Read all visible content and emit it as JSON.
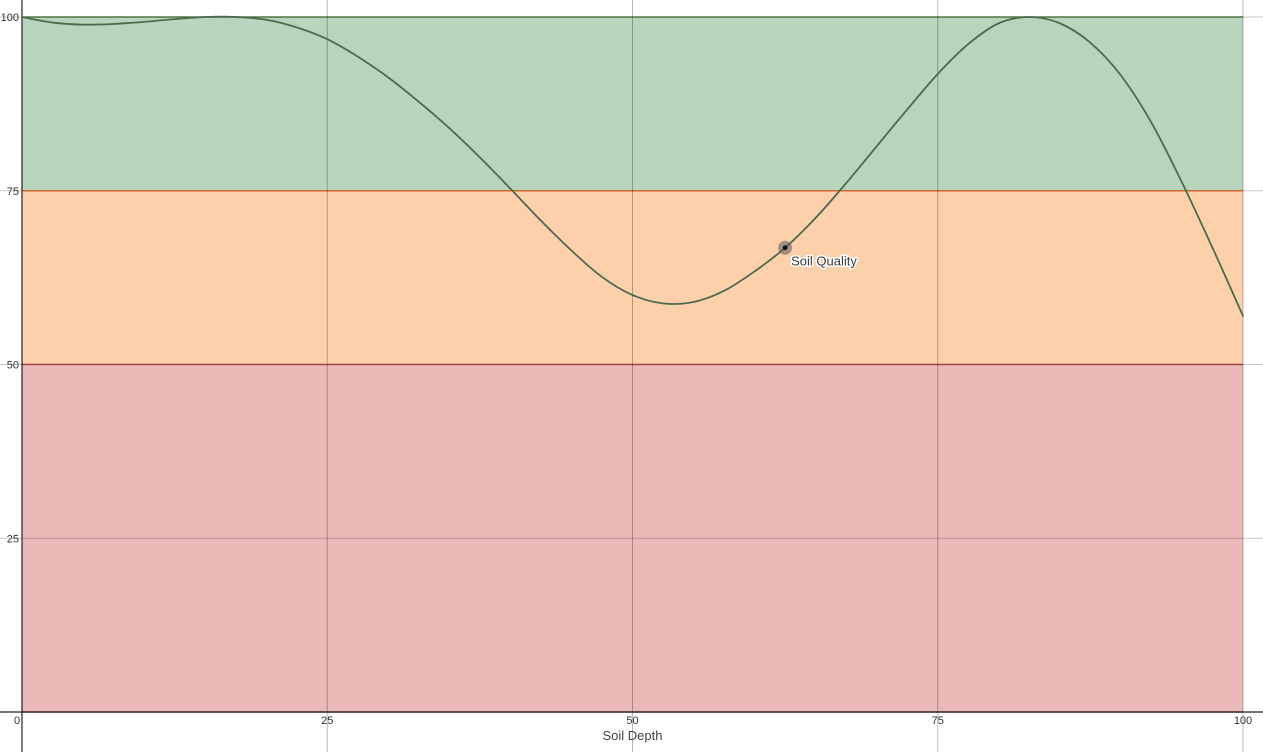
{
  "chart_data": {
    "type": "line",
    "xlabel": "Soil Depth",
    "ylabel": "",
    "xlim": [
      0,
      100
    ],
    "ylim": [
      0,
      100
    ],
    "x_ticks": [
      0,
      25,
      50,
      75,
      100
    ],
    "y_ticks": [
      0,
      25,
      50,
      75,
      100
    ],
    "grid": true,
    "bands": [
      {
        "from": 0,
        "to": 50,
        "color": "#eab9b8",
        "edge_color": "#c0504d"
      },
      {
        "from": 50,
        "to": 75,
        "color": "#fdd0ac",
        "edge_color": "#f07a3c"
      },
      {
        "from": 75,
        "to": 100,
        "color": "#b8d4bd",
        "edge_color": "#5d8a4e"
      }
    ],
    "series": [
      {
        "x": [
          0,
          2.5,
          5,
          7.5,
          10,
          12.5,
          15,
          17.5,
          20,
          22.5,
          25,
          27.5,
          30,
          32.5,
          35,
          37.5,
          40,
          42.5,
          45,
          47.5,
          50,
          52.5,
          55,
          57.5,
          60,
          62.5,
          65,
          67.5,
          70,
          72.5,
          75,
          77.5,
          80,
          82.5,
          85,
          87.5,
          90,
          92.5,
          95,
          97.5,
          100
        ],
        "values": [
          100,
          99.2,
          98.9,
          99.0,
          99.3,
          99.7,
          100,
          100,
          99.6,
          98.5,
          96.8,
          94.3,
          91.3,
          87.8,
          84.0,
          79.8,
          75.3,
          70.7,
          66.4,
          62.6,
          60.0,
          58.8,
          59.0,
          60.6,
          63.4,
          66.8,
          71.1,
          76.1,
          81.4,
          86.7,
          91.8,
          96.1,
          99.1,
          100,
          99.1,
          96.3,
          91.6,
          84.8,
          76.2,
          66.8,
          57.0
        ],
        "line_color": "#4c6b4c"
      }
    ],
    "highlight_point": {
      "x": 62.5,
      "y": 66.8,
      "label": "Soil Quality"
    }
  }
}
